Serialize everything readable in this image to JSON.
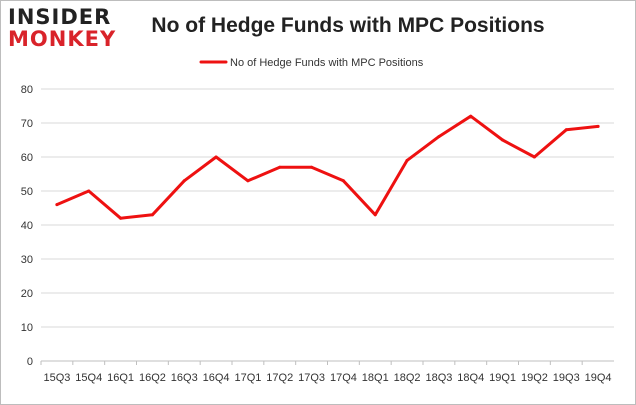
{
  "brand": {
    "line1": "INSIDER",
    "line2": "MONKEY"
  },
  "chart_data": {
    "type": "line",
    "title": "No of Hedge Funds with MPC Positions",
    "xlabel": "",
    "ylabel": "",
    "categories": [
      "15Q3",
      "15Q4",
      "16Q1",
      "16Q2",
      "16Q3",
      "16Q4",
      "17Q1",
      "17Q2",
      "17Q3",
      "17Q4",
      "18Q1",
      "18Q2",
      "18Q3",
      "18Q4",
      "19Q1",
      "19Q2",
      "19Q3",
      "19Q4"
    ],
    "series": [
      {
        "name": "No of Hedge Funds with MPC Positions",
        "values": [
          46,
          50,
          42,
          43,
          53,
          60,
          53,
          57,
          57,
          53,
          43,
          59,
          66,
          72,
          65,
          60,
          68,
          69
        ]
      }
    ],
    "ylim": [
      0,
      80
    ],
    "yticks": [
      0,
      10,
      20,
      30,
      40,
      50,
      60,
      70,
      80
    ],
    "grid": true,
    "legend_position": "top",
    "colors": {
      "series": "#ee1111",
      "grid": "#d9d9d9",
      "axis": "#bfbfbf"
    }
  }
}
